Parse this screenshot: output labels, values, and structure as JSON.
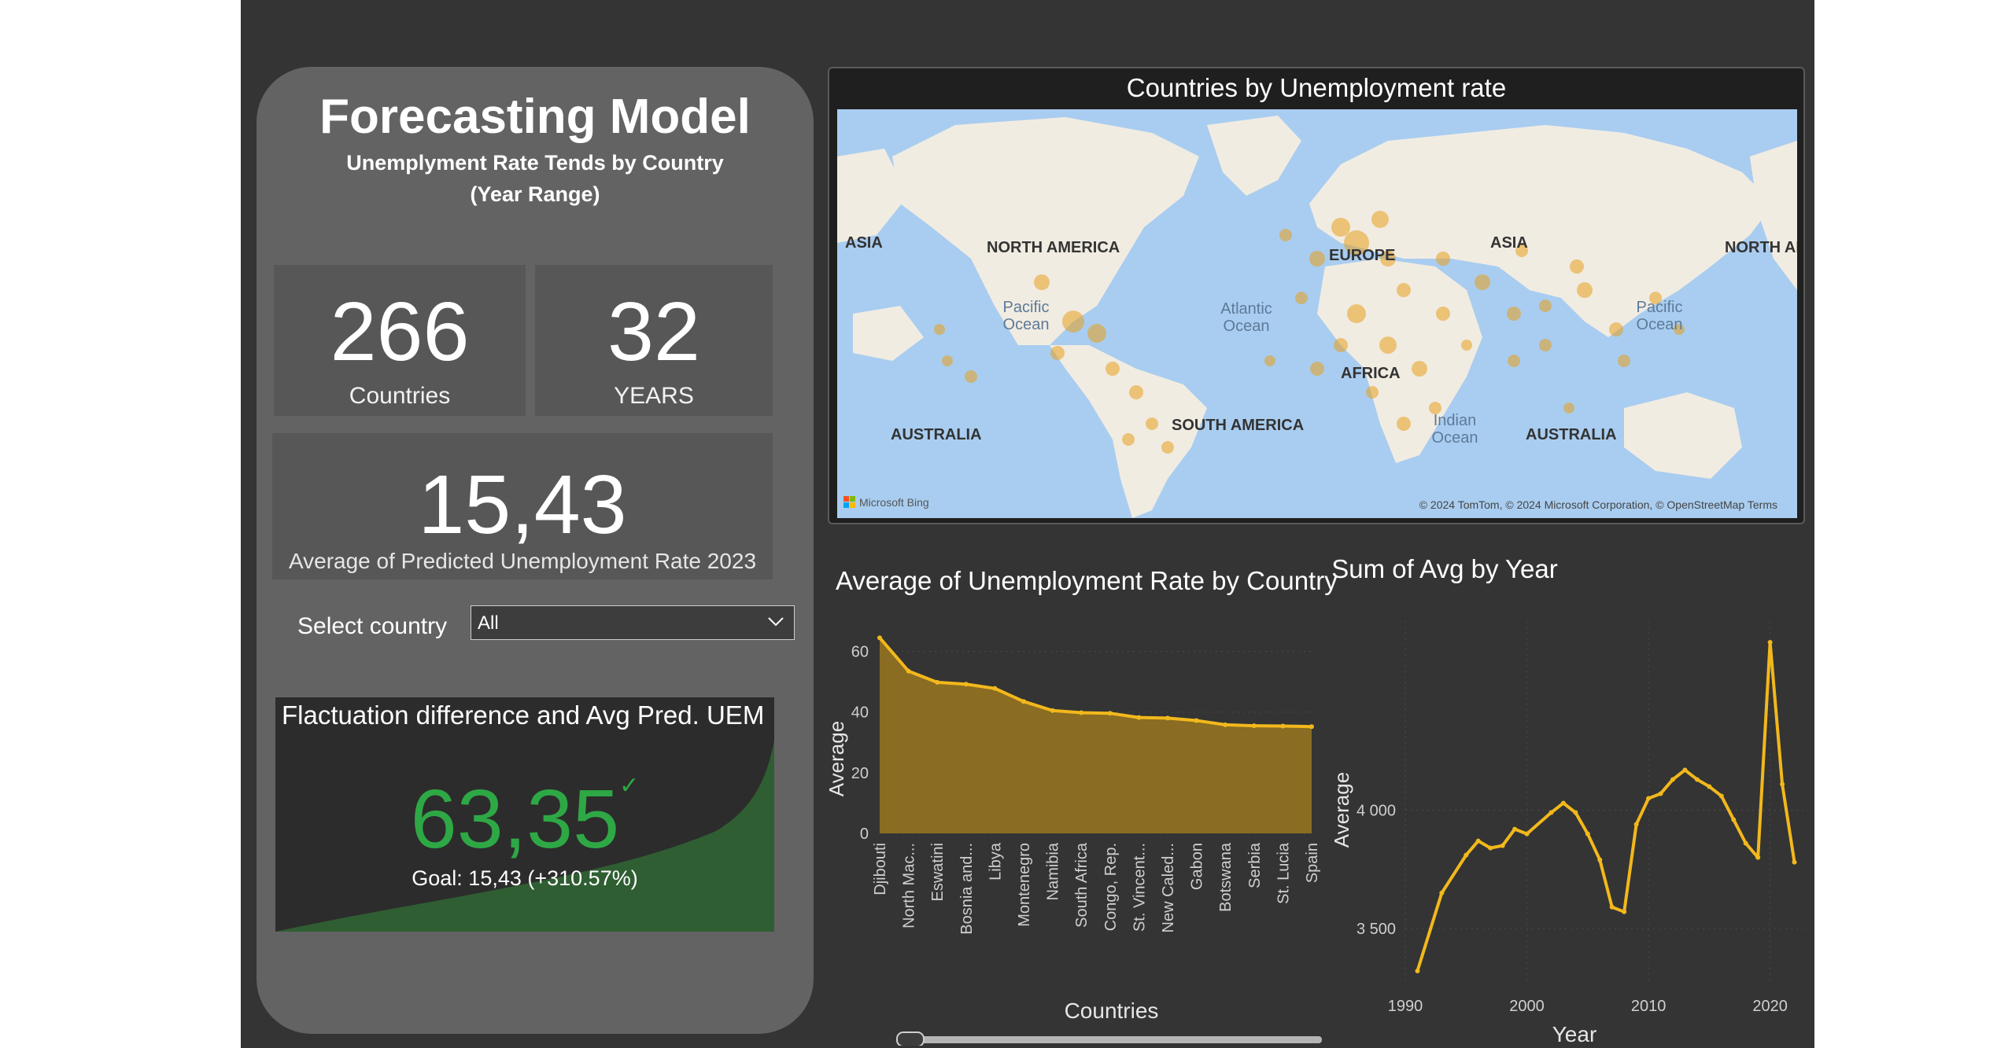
{
  "left": {
    "title": "Forecasting Model",
    "subtitle_line1": "Unemplyment Rate Tends by Country",
    "subtitle_line2": "(Year Range)",
    "countries_value": "266",
    "countries_label": "Countries",
    "years_value": "32",
    "years_label": "YEARS",
    "avg_value": "15,43",
    "avg_label": "Average of Predicted Unemployment Rate 2023",
    "select_label": "Select country",
    "select_value": "All",
    "kpi_title": "Flactuation difference and Avg Pred. UEM",
    "kpi_value": "63,35",
    "kpi_check": "✓",
    "kpi_goal": "Goal: 15,43 (+310.57%)"
  },
  "map": {
    "title": "Countries by Unemployment rate",
    "labels": {
      "asia_left": "ASIA",
      "north_america": "NORTH AMERICA",
      "europe": "EUROPE",
      "asia": "ASIA",
      "north_america_right": "NORTH AMI",
      "pacific_ocean": "Pacific",
      "pacific_ocean2": "Ocean",
      "atlantic_ocean": "Atlantic",
      "atlantic_ocean2": "Ocean",
      "pacific_ocean_r": "Pacific",
      "pacific_ocean_r2": "Ocean",
      "africa": "AFRICA",
      "australia_left": "AUSTRALIA",
      "south_america": "SOUTH AMERICA",
      "indian_ocean": "Indian",
      "indian_ocean2": "Ocean",
      "australia": "AUSTRALIA"
    },
    "bing": "Microsoft Bing",
    "attribution": "© 2024 TomTom, © 2024 Microsoft Corporation, © OpenStreetMap  Terms",
    "colors": {
      "land": "#f1ece2",
      "water": "#a9cdf0",
      "bubble": "#e6a11e"
    }
  },
  "chart_data": [
    {
      "type": "area",
      "title": "Average of Unemployment Rate by Country",
      "xlabel": "Countries",
      "ylabel": "Average",
      "categories": [
        "Djibouti",
        "North Mac...",
        "Eswatini",
        "Bosnia and...",
        "Libya",
        "Montenegro",
        "Namibia",
        "South Africa",
        "Congo, Rep.",
        "St. Vincent...",
        "New Caled...",
        "Gabon",
        "Botswana",
        "Serbia",
        "St. Lucia",
        "Spain"
      ],
      "values": [
        64.5,
        53.5,
        49.8,
        49.2,
        47.8,
        43.5,
        40.5,
        39.8,
        39.6,
        38.2,
        38.0,
        37.2,
        35.8,
        35.5,
        35.4,
        35.2
      ],
      "yticks": [
        "0",
        "20",
        "40",
        "60"
      ],
      "ylim": [
        0,
        70
      ],
      "color": "#f2b81c",
      "fill": "#8a6c22"
    },
    {
      "type": "line",
      "title": "Sum of Avg by Year",
      "xlabel": "Year",
      "ylabel": "Average",
      "x": [
        1991,
        1993,
        1995,
        1996,
        1997,
        1998,
        1999,
        2000,
        2002,
        2003,
        2004,
        2005,
        2006,
        2007,
        2008,
        2009,
        2010,
        2011,
        2012,
        2013,
        2014,
        2015,
        2016,
        2017,
        2018,
        2019,
        2020,
        2021,
        2022
      ],
      "values": [
        3320,
        3650,
        3810,
        3870,
        3840,
        3850,
        3920,
        3900,
        3990,
        4030,
        3990,
        3900,
        3790,
        3590,
        3570,
        3940,
        4050,
        4070,
        4130,
        4170,
        4130,
        4100,
        4060,
        3960,
        3860,
        3800,
        4710,
        4110,
        3780
      ],
      "xticks": [
        "1990",
        "2000",
        "2010",
        "2020"
      ],
      "yticks": [
        "3 500",
        "4 000"
      ],
      "xlim": [
        1990,
        2023
      ],
      "ylim": [
        3270,
        4800
      ],
      "color": "#f2b81c"
    }
  ]
}
